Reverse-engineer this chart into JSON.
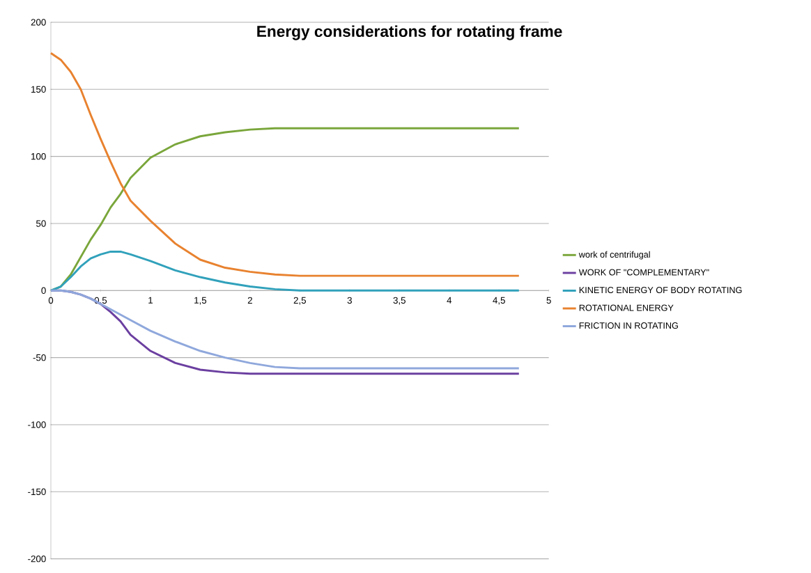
{
  "chart_data": {
    "type": "line",
    "title": "Energy considerations for rotating frame",
    "xlim": [
      0,
      5
    ],
    "ylim": [
      -200,
      200
    ],
    "xticks": [
      0,
      {
        "value": 0.5,
        "label": "0,5"
      },
      1,
      {
        "value": 1.5,
        "label": "1,5"
      },
      2,
      {
        "value": 2.5,
        "label": "2,5"
      },
      3,
      {
        "value": 3.5,
        "label": "3,5"
      },
      4,
      {
        "value": 4.5,
        "label": "4,5"
      },
      5
    ],
    "yticks": [
      -200,
      -150,
      -100,
      -50,
      0,
      50,
      100,
      150,
      200
    ],
    "grid": "y",
    "legend": "right",
    "marker": "none",
    "line_style": "solid",
    "x": [
      0,
      0.1,
      0.2,
      0.3,
      0.4,
      0.5,
      0.6,
      0.7,
      0.8,
      1,
      1.25,
      1.5,
      1.75,
      2,
      2.25,
      2.5,
      3,
      3.5,
      4,
      4.7
    ],
    "series": [
      {
        "name": "work of centrifugal",
        "color": "#7aa63b",
        "values": [
          0,
          3,
          12,
          25,
          38,
          49,
          62,
          72,
          84,
          99,
          109,
          115,
          118,
          120,
          121,
          121,
          121,
          121,
          121,
          121
        ]
      },
      {
        "name": "WORK OF \"COMPLEMENTARY\"",
        "color": "#6b3fa0",
        "values": [
          0,
          0,
          -1,
          -3,
          -6,
          -10,
          -16,
          -23,
          -33,
          -45,
          -54,
          -59,
          -61,
          -62,
          -62,
          -62,
          -62,
          -62,
          -62,
          -62
        ]
      },
      {
        "name": "KINETIC ENERGY OF BODY ROTATING",
        "color": "#31a1bb",
        "values": [
          0,
          3,
          10,
          18,
          24,
          27,
          29,
          29,
          27,
          22,
          15,
          10,
          6,
          3,
          1,
          0,
          0,
          0,
          0,
          0
        ]
      },
      {
        "name": "ROTATIONAL ENERGY",
        "color": "#e8822f",
        "values": [
          177,
          172,
          163,
          150,
          131,
          113,
          96,
          80,
          67,
          52,
          35,
          23,
          17,
          14,
          12,
          11,
          11,
          11,
          11,
          11
        ]
      },
      {
        "name": "FRICTION IN ROTATING",
        "color": "#8fa8dc",
        "values": [
          0,
          0,
          -1,
          -3,
          -6,
          -10,
          -14,
          -18,
          -22,
          -30,
          -38,
          -45,
          -50,
          -54,
          -57,
          -58,
          -58,
          -58,
          -58,
          -58
        ]
      }
    ]
  }
}
